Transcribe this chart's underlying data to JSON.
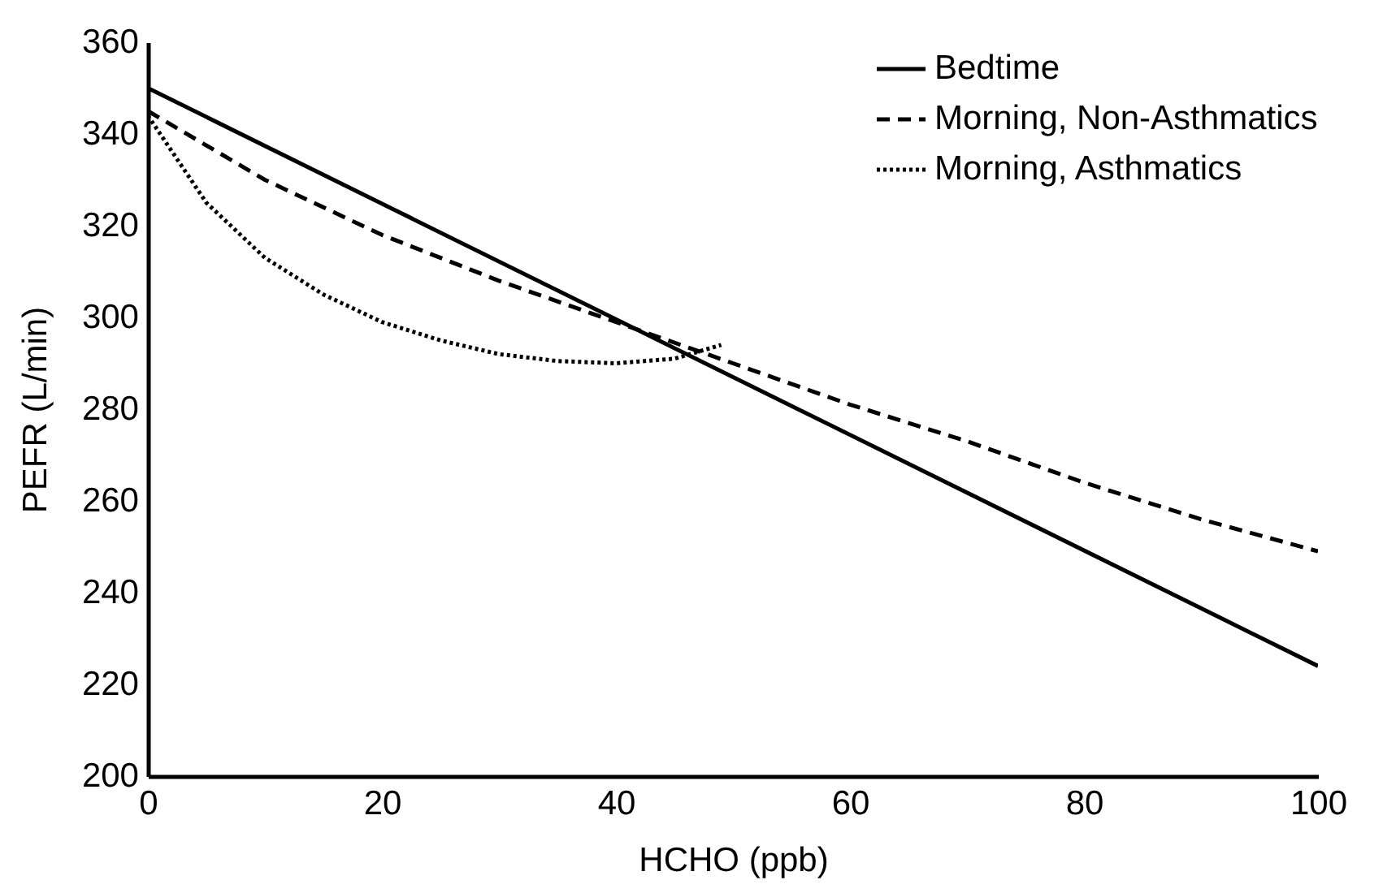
{
  "chart_data": {
    "type": "line",
    "xlabel": "HCHO (ppb)",
    "ylabel": "PEFR (L/min)",
    "xlim": [
      0,
      100
    ],
    "ylim": [
      200,
      360
    ],
    "xticks": [
      0,
      20,
      40,
      60,
      80,
      100
    ],
    "yticks": [
      200,
      220,
      240,
      260,
      280,
      300,
      320,
      340,
      360
    ],
    "grid": false,
    "legend": "top right",
    "marker": "none",
    "series": [
      {
        "name": "Bedtime",
        "color": "#000000",
        "line_style": "solid",
        "x": [
          0,
          100
        ],
        "values": [
          350,
          224
        ]
      },
      {
        "name": "Morning, Non-Asthmatics",
        "color": "#000000",
        "line_style": "dashed",
        "x": [
          0,
          10,
          20,
          30,
          40,
          50,
          60,
          70,
          80,
          90,
          100
        ],
        "values": [
          345,
          330,
          318,
          308,
          299,
          290,
          281,
          273,
          264,
          256,
          249
        ]
      },
      {
        "name": "Morning, Asthmatics",
        "color": "#000000",
        "line_style": "dotted",
        "x": [
          0,
          5,
          10,
          15,
          20,
          25,
          30,
          35,
          40,
          45,
          49
        ],
        "values": [
          344,
          325,
          313,
          305,
          299,
          295,
          292,
          290.5,
          290,
          291,
          294
        ]
      }
    ]
  }
}
